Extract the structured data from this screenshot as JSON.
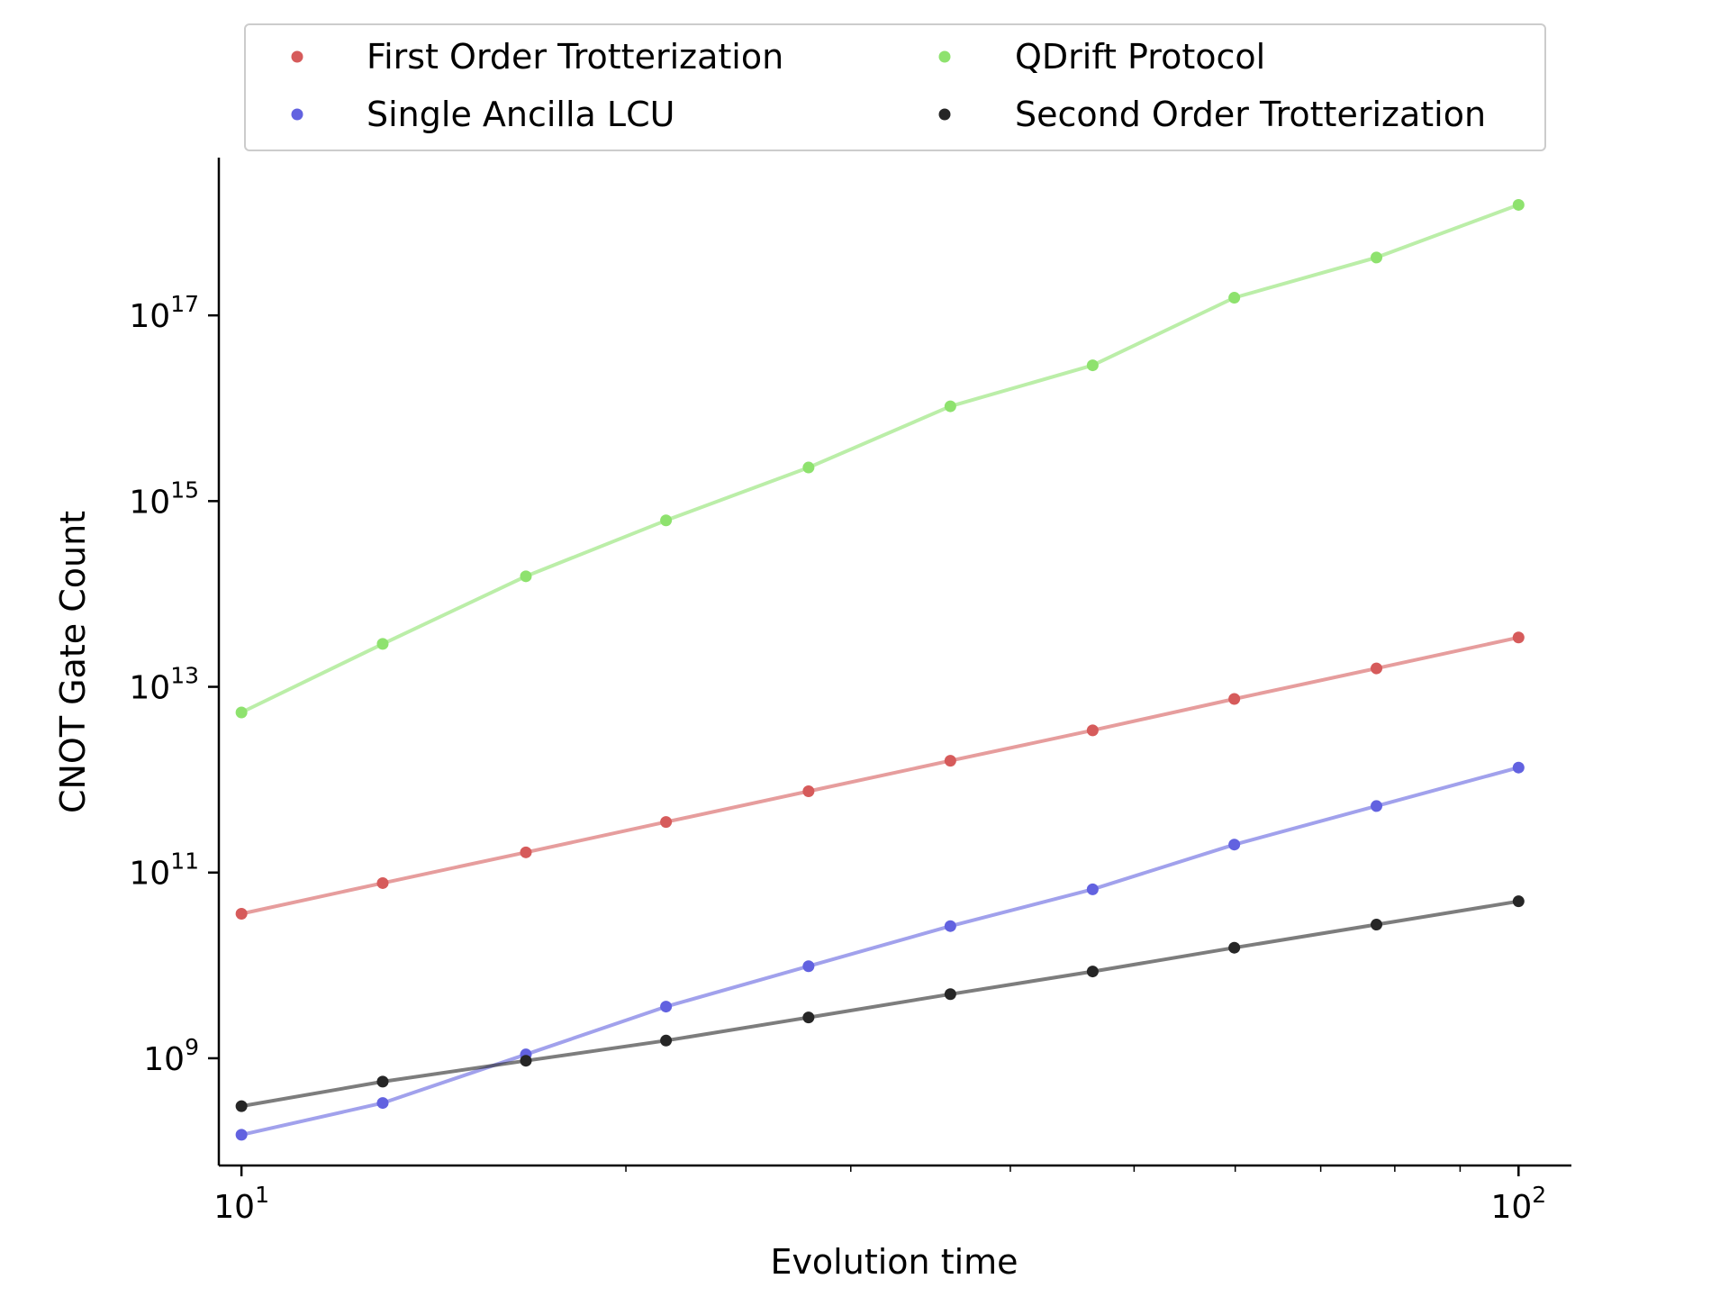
{
  "chart_data": {
    "type": "line",
    "xlabel": "Evolution time",
    "ylabel": "CNOT Gate Count",
    "x_scale": "log",
    "y_scale": "log",
    "xlim": [
      9.6,
      110
    ],
    "ylim": [
      70000000.0,
      5e+18
    ],
    "x_ticks": [
      {
        "base": "10",
        "exp": "1",
        "value": 10
      },
      {
        "base": "10",
        "exp": "2",
        "value": 100
      }
    ],
    "y_ticks": [
      {
        "base": "10",
        "exp": "9",
        "value": 1000000000.0
      },
      {
        "base": "10",
        "exp": "11",
        "value": 100000000000.0
      },
      {
        "base": "10",
        "exp": "13",
        "value": 10000000000000.0
      },
      {
        "base": "10",
        "exp": "15",
        "value": 1000000000000000.0
      },
      {
        "base": "10",
        "exp": "17",
        "value": 1e+17
      }
    ],
    "grid": false,
    "legend_position": "top-center",
    "x": [
      10.0,
      12.9,
      16.7,
      21.5,
      27.8,
      35.9,
      46.4,
      59.9,
      77.4,
      100.0
    ],
    "series": [
      {
        "name": "First Order Trotterization",
        "color": "#d65b5b",
        "values": [
          36000000000.0,
          77000000000.0,
          165000000000.0,
          350000000000.0,
          750000000000.0,
          1600000000000.0,
          3400000000000.0,
          7400000000000.0,
          15800000000000.0,
          34000000000000.0
        ]
      },
      {
        "name": "Single Ancilla LCU",
        "color": "#6262e0",
        "values": [
          150000000.0,
          330000000.0,
          1100000000.0,
          3600000000.0,
          9800000000.0,
          26500000000.0,
          66000000000.0,
          200000000000.0,
          520000000000.0,
          1350000000000.0
        ]
      },
      {
        "name": "QDrift Protocol",
        "color": "#8ee26e",
        "values": [
          5300000000000.0,
          29000000000000.0,
          155000000000000.0,
          620000000000000.0,
          2300000000000000.0,
          1.05e+16,
          2.9e+16,
          1.55e+17,
          4.2e+17,
          1.55e+18
        ]
      },
      {
        "name": "Second Order Trotterization",
        "color": "#262626",
        "values": [
          305000000.0,
          560000000.0,
          940000000.0,
          1550000000.0,
          2750000000.0,
          4900000000.0,
          8600000000.0,
          15500000000.0,
          27500000000.0,
          49000000000.0
        ]
      }
    ]
  }
}
